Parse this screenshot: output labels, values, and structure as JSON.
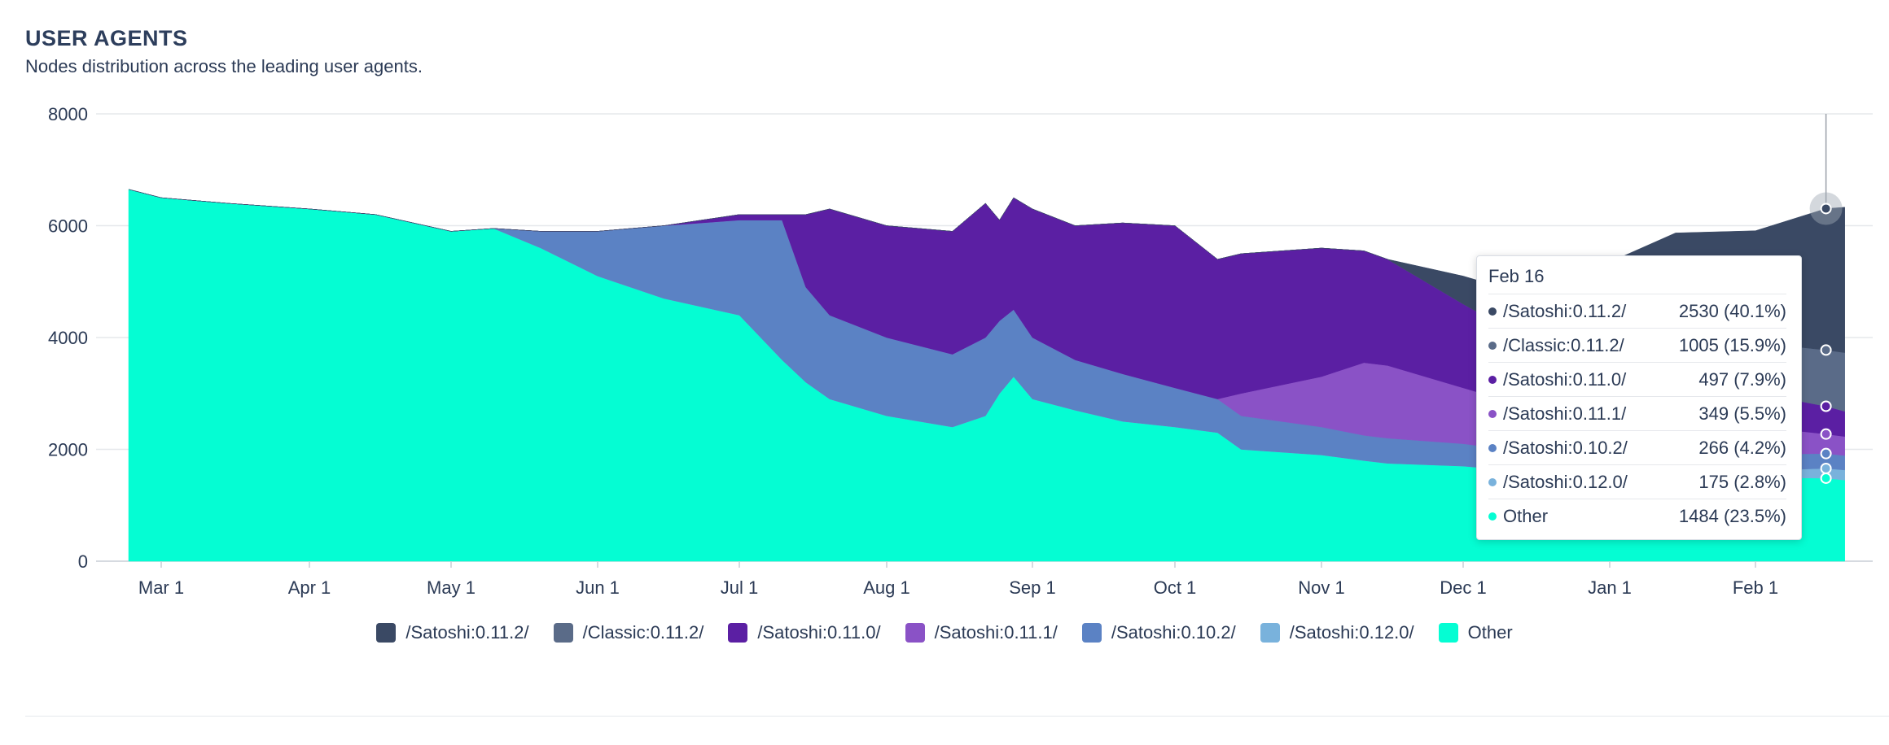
{
  "header": {
    "title": "USER AGENTS",
    "subtitle": "Nodes distribution across the leading user agents."
  },
  "colors": {
    "/Satoshi:0.11.2/": "#3a4964",
    "/Classic:0.11.2/": "#5a6b88",
    "/Satoshi:0.11.0/": "#5b1fa3",
    "/Satoshi:0.11.1/": "#8a52c6",
    "/Satoshi:0.10.2/": "#5b82c4",
    "/Satoshi:0.12.0/": "#79b2dc",
    "Other": "#05fdd3"
  },
  "chart_data": {
    "type": "area",
    "stacked": true,
    "title": "USER AGENTS",
    "subtitle": "Nodes distribution across the leading user agents.",
    "x_tick_labels": [
      "Mar 1",
      "Apr 1",
      "May 1",
      "Jun 1",
      "Jul 1",
      "Aug 1",
      "Sep 1",
      "Oct 1",
      "Nov 1",
      "Dec 1",
      "Jan 1",
      "Feb 1"
    ],
    "y_ticks": [
      0,
      2000,
      4000,
      6000,
      8000
    ],
    "ylim": [
      0,
      8000
    ],
    "grid": "horizontal",
    "legend_position": "bottom",
    "x": [
      "Feb 22",
      "Mar 1",
      "Mar 15",
      "Apr 1",
      "Apr 15",
      "May 1",
      "May 10",
      "May 20",
      "Jun 1",
      "Jun 15",
      "Jul 1",
      "Jul 10",
      "Jul 15",
      "Jul 20",
      "Aug 1",
      "Aug 15",
      "Aug 22",
      "Aug 25",
      "Aug 28",
      "Sep 1",
      "Sep 10",
      "Sep 20",
      "Oct 1",
      "Oct 10",
      "Oct 15",
      "Nov 1",
      "Nov 10",
      "Nov 15",
      "Dec 1",
      "Dec 15",
      "Jan 1",
      "Jan 15",
      "Feb 1",
      "Feb 16",
      "Feb 20"
    ],
    "series": [
      {
        "name": "Other",
        "values": [
          6650,
          6500,
          6400,
          6300,
          6200,
          5900,
          5950,
          5600,
          5100,
          4700,
          4400,
          3600,
          3200,
          2900,
          2600,
          2400,
          2600,
          3000,
          3300,
          2900,
          2700,
          2500,
          2400,
          2300,
          2000,
          1900,
          1800,
          1750,
          1700,
          1600,
          1600,
          1550,
          1500,
          1484,
          1450
        ]
      },
      {
        "name": "/Satoshi:0.12.0/",
        "values": [
          0,
          0,
          0,
          0,
          0,
          0,
          0,
          0,
          0,
          0,
          0,
          0,
          0,
          0,
          0,
          0,
          0,
          0,
          0,
          0,
          0,
          0,
          0,
          0,
          0,
          0,
          0,
          0,
          0,
          0,
          0,
          0,
          120,
          175,
          180
        ]
      },
      {
        "name": "/Satoshi:0.10.2/",
        "values": [
          0,
          0,
          0,
          0,
          0,
          0,
          0,
          300,
          800,
          1300,
          1700,
          2500,
          1700,
          1500,
          1400,
          1300,
          1400,
          1300,
          1200,
          1100,
          900,
          850,
          700,
          600,
          600,
          500,
          450,
          450,
          400,
          350,
          350,
          320,
          290,
          266,
          260
        ]
      },
      {
        "name": "/Satoshi:0.11.1/",
        "values": [
          0,
          0,
          0,
          0,
          0,
          0,
          0,
          0,
          0,
          0,
          0,
          0,
          0,
          0,
          0,
          0,
          0,
          0,
          0,
          0,
          0,
          0,
          0,
          0,
          400,
          900,
          1300,
          1300,
          1000,
          800,
          700,
          600,
          500,
          349,
          340
        ]
      },
      {
        "name": "/Satoshi:0.11.0/",
        "values": [
          0,
          0,
          0,
          0,
          0,
          0,
          0,
          0,
          0,
          0,
          100,
          100,
          1300,
          1900,
          2000,
          2200,
          2400,
          1800,
          2000,
          2300,
          2400,
          2700,
          2900,
          2500,
          2500,
          2300,
          2000,
          1900,
          1500,
          1200,
          1000,
          800,
          600,
          497,
          450
        ]
      },
      {
        "name": "/Classic:0.11.2/",
        "values": [
          0,
          0,
          0,
          0,
          0,
          0,
          0,
          0,
          0,
          0,
          0,
          0,
          0,
          0,
          0,
          0,
          0,
          0,
          0,
          0,
          0,
          0,
          0,
          0,
          0,
          0,
          0,
          0,
          0,
          0,
          200,
          700,
          900,
          1005,
          1050
        ]
      },
      {
        "name": "/Satoshi:0.11.2/",
        "values": [
          0,
          0,
          0,
          0,
          0,
          0,
          0,
          0,
          0,
          0,
          0,
          0,
          0,
          0,
          0,
          0,
          0,
          0,
          0,
          0,
          0,
          0,
          0,
          0,
          0,
          0,
          0,
          0,
          500,
          800,
          1500,
          1900,
          2000,
          2530,
          2600
        ]
      }
    ],
    "tooltip": {
      "date": "Feb 16",
      "rows": [
        {
          "name": "/Satoshi:0.11.2/",
          "value": "2530 (40.1%)"
        },
        {
          "name": "/Classic:0.11.2/",
          "value": "1005 (15.9%)"
        },
        {
          "name": "/Satoshi:0.11.0/",
          "value": "497 (7.9%)"
        },
        {
          "name": "/Satoshi:0.11.1/",
          "value": "349 (5.5%)"
        },
        {
          "name": "/Satoshi:0.10.2/",
          "value": "266 (4.2%)"
        },
        {
          "name": "/Satoshi:0.12.0/",
          "value": "175 (2.8%)"
        },
        {
          "name": "Other",
          "value": "1484 (23.5%)"
        }
      ]
    }
  },
  "legend": [
    {
      "label": "/Satoshi:0.11.2/",
      "color": "#3a4964"
    },
    {
      "label": "/Classic:0.11.2/",
      "color": "#5a6b88"
    },
    {
      "label": "/Satoshi:0.11.0/",
      "color": "#5b1fa3"
    },
    {
      "label": "/Satoshi:0.11.1/",
      "color": "#8a52c6"
    },
    {
      "label": "/Satoshi:0.10.2/",
      "color": "#5b82c4"
    },
    {
      "label": "/Satoshi:0.12.0/",
      "color": "#79b2dc"
    },
    {
      "label": "Other",
      "color": "#05fdd3"
    }
  ]
}
